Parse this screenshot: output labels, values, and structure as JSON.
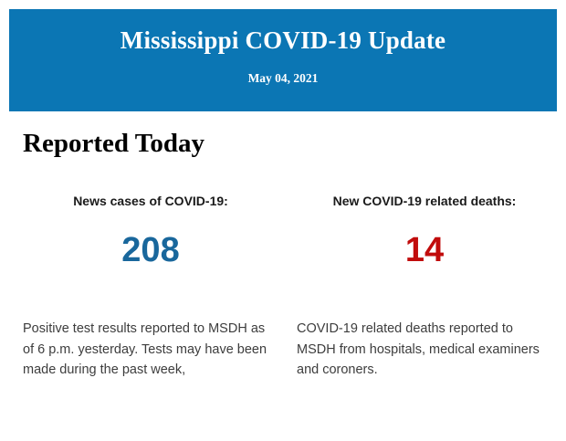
{
  "header": {
    "title": "Mississippi COVID-19 Update",
    "date": "May 04, 2021",
    "background_color": "#0B76B4",
    "text_color": "#FFFFFF"
  },
  "section": {
    "heading": "Reported Today"
  },
  "stats": [
    {
      "label": "News cases of COVID-19:",
      "value": "208",
      "value_color": "#19679C",
      "description": "Positive test results reported to MSDH as of 6 p.m. yesterday. Tests may have been made during the past week,"
    },
    {
      "label": "New COVID-19 related deaths:",
      "value": "14",
      "value_color": "#C10C0C",
      "description": "COVID-19 related deaths reported to MSDH from hospitals, medical examiners and coroners."
    }
  ]
}
